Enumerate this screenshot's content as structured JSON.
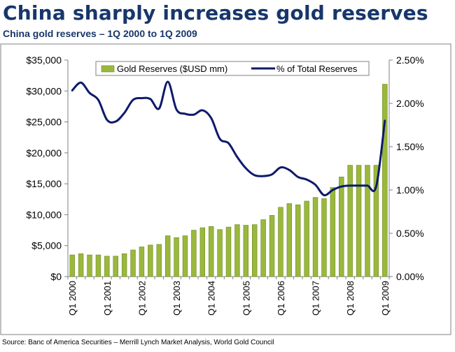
{
  "header": {
    "title": "China sharply increases gold reserves",
    "subtitle": "China gold reserves – 1Q 2000 to 1Q 2009"
  },
  "footer": {
    "source": "Source: Banc of America Securities – Merrill Lynch Market Analysis, World Gold Council"
  },
  "colors": {
    "bar": "#9ab83c",
    "bar_edge": "#6d8a22",
    "line": "#0d1a6b",
    "title": "#17366b"
  },
  "chart_data": {
    "type": "bar",
    "title": "China gold reserves – 1Q 2000 to 1Q 2009",
    "xlabel": "",
    "ylabel": "",
    "ylim": [
      0,
      35000
    ],
    "y2lim": [
      0,
      0.025
    ],
    "y_ticks": [
      "$0",
      "$5,000",
      "$10,000",
      "$15,000",
      "$20,000",
      "$25,000",
      "$30,000",
      "$35,000"
    ],
    "y_tick_values": [
      0,
      5000,
      10000,
      15000,
      20000,
      25000,
      30000,
      35000
    ],
    "y2_ticks": [
      "0.00%",
      "0.50%",
      "1.00%",
      "1.50%",
      "2.00%",
      "2.50%"
    ],
    "y2_tick_values": [
      0,
      0.005,
      0.01,
      0.015,
      0.02,
      0.025
    ],
    "x_ticks": [
      "Q1 2000",
      "Q1 2001",
      "Q1 2002",
      "Q1 2003",
      "Q1 2004",
      "Q1 2005",
      "Q1 2006",
      "Q1 2007",
      "Q1 2008",
      "Q1 2009"
    ],
    "x_tick_indices": [
      0,
      4,
      8,
      12,
      16,
      20,
      24,
      28,
      32,
      36
    ],
    "legend": [
      "Gold Reserves ($USD mm)",
      "% of Total Reserves"
    ],
    "legend_position": "top",
    "series": [
      {
        "name": "Gold Reserves ($USD mm)",
        "type": "bar",
        "axis": "left",
        "values": [
          3500,
          3700,
          3500,
          3500,
          3300,
          3300,
          3700,
          4300,
          4800,
          5100,
          5200,
          6600,
          6300,
          6600,
          7500,
          7900,
          8100,
          7600,
          8000,
          8400,
          8300,
          8400,
          9200,
          9900,
          11200,
          11800,
          11600,
          12200,
          12800,
          12600,
          14400,
          16100,
          18000,
          18000,
          18000,
          18000,
          31100
        ]
      },
      {
        "name": "% of Total Reserves",
        "type": "line",
        "axis": "right",
        "values": [
          0.0215,
          0.0224,
          0.0212,
          0.0204,
          0.0181,
          0.0179,
          0.0189,
          0.0204,
          0.0206,
          0.0205,
          0.0194,
          0.0225,
          0.0193,
          0.0188,
          0.0187,
          0.0192,
          0.0183,
          0.0159,
          0.0154,
          0.0138,
          0.0125,
          0.0117,
          0.0116,
          0.0118,
          0.0126,
          0.0123,
          0.0115,
          0.0112,
          0.0106,
          0.0094,
          0.01,
          0.0104,
          0.0105,
          0.0105,
          0.0105,
          0.0104,
          0.018
        ]
      }
    ]
  }
}
